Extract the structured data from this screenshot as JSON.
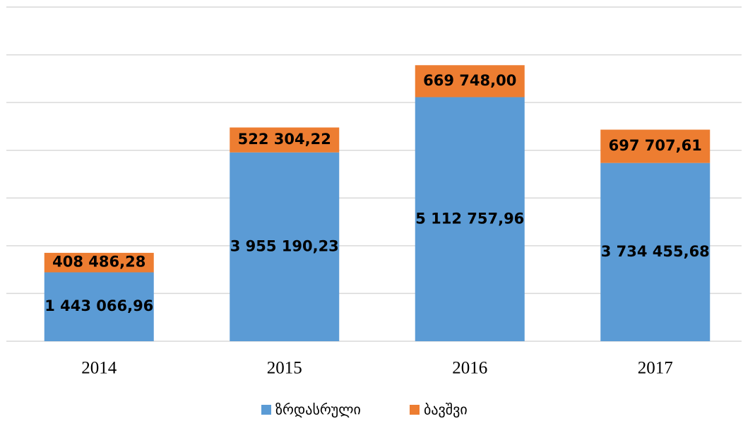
{
  "chart_data": {
    "type": "stacked_bar",
    "categories": [
      "2014",
      "2015",
      "2016",
      "2017"
    ],
    "series": [
      {
        "name": "ზრდასრული",
        "color": "#5b9bd5",
        "values": [
          1443066.96,
          3955190.23,
          5112757.96,
          3734455.68
        ],
        "value_labels": [
          "1 443 066,96",
          "3 955 190,23",
          "5 112 757,96",
          "3 734 455,68"
        ]
      },
      {
        "name": "ბავშვი",
        "color": "#ed7d31",
        "values": [
          408486.28,
          522304.22,
          669748.0,
          697707.61
        ],
        "value_labels": [
          "408 486,28",
          "522 304,22",
          "669 748,00",
          "697 707,61"
        ]
      }
    ],
    "ylim": [
      0,
      7000000
    ],
    "yticks": [
      0,
      1000000,
      2000000,
      3000000,
      4000000,
      5000000,
      6000000,
      7000000
    ],
    "grid": true,
    "legend": "bottom"
  }
}
